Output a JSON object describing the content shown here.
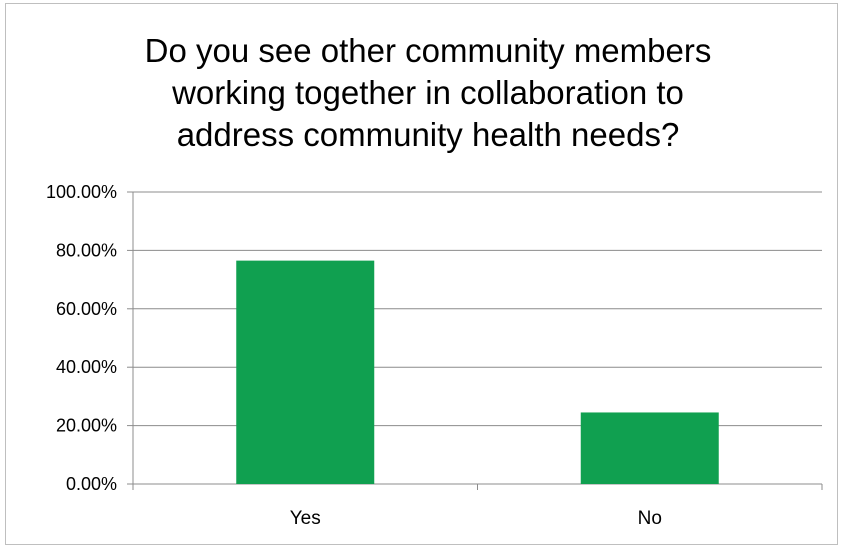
{
  "chart_data": {
    "type": "bar",
    "title_lines": [
      "Do you see other community members",
      "working together in collaboration to",
      "address community health needs?"
    ],
    "categories": [
      "Yes",
      "No"
    ],
    "values": [
      76.5,
      24.5
    ],
    "y_ticks": [
      "0.00%",
      "20.00%",
      "40.00%",
      "60.00%",
      "80.00%",
      "100.00%"
    ],
    "ylim": [
      0,
      100
    ],
    "grid": true,
    "bar_color": "#10a050"
  }
}
